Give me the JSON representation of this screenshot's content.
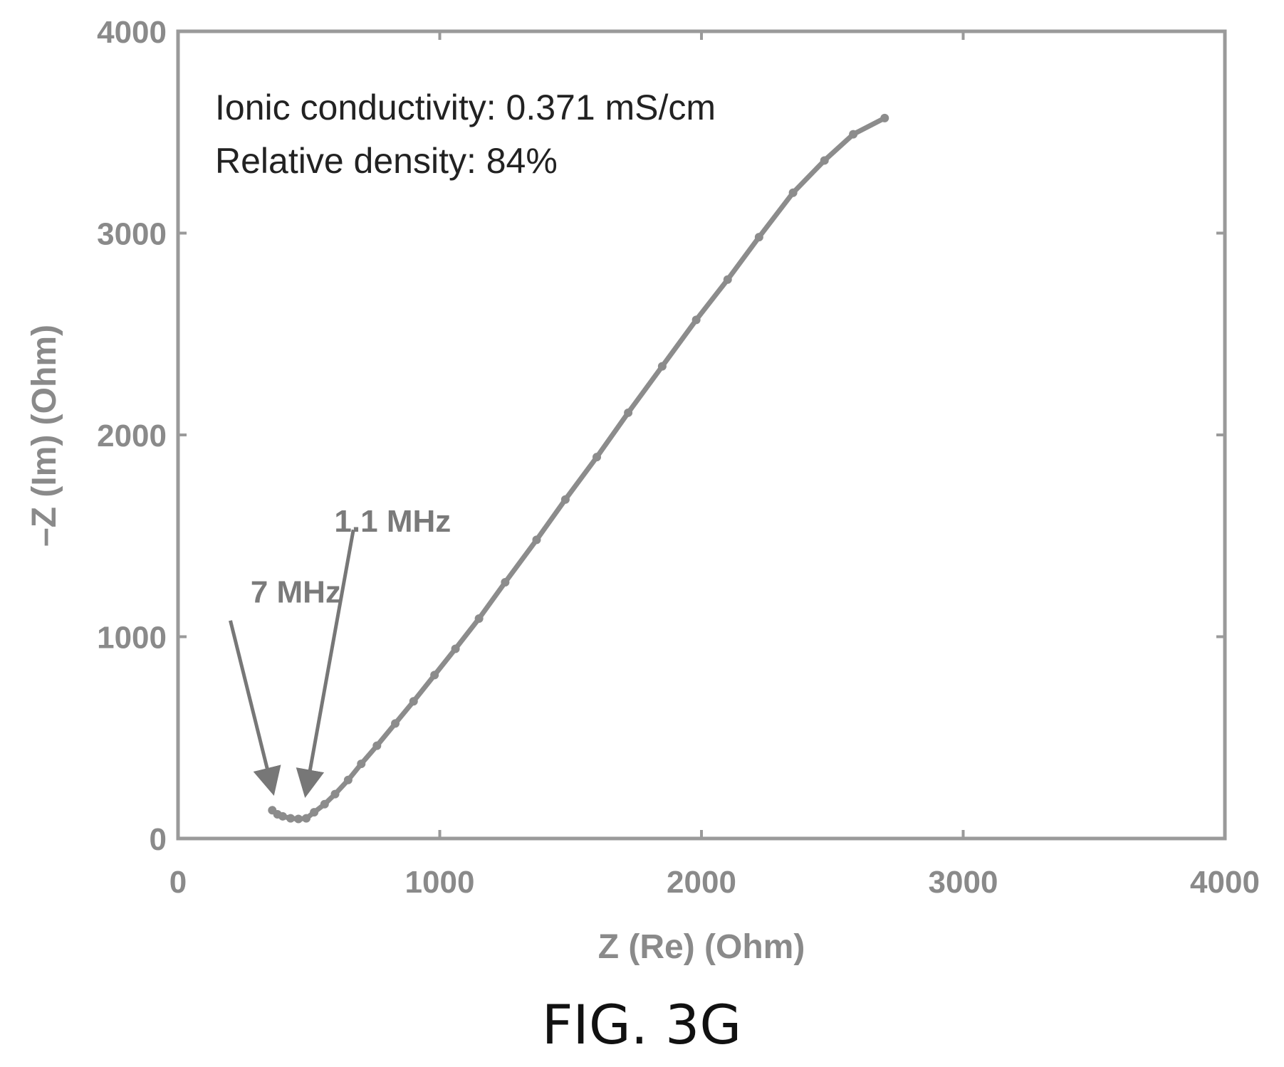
{
  "figure": {
    "caption": "FIG. 3G"
  },
  "chart_data": {
    "type": "line",
    "xlabel": "Z (Re) (Ohm)",
    "ylabel": "–Z (Im) (Ohm)",
    "xlim": [
      0,
      4000
    ],
    "ylim": [
      0,
      4000
    ],
    "xticks": [
      "0",
      "1000",
      "2000",
      "3000",
      "4000"
    ],
    "yticks": [
      "0",
      "1000",
      "2000",
      "3000",
      "4000"
    ],
    "annotations": {
      "conductivity": "Ionic conductivity: 0.371 mS/cm",
      "density": "Relative density: 84%"
    },
    "frequency_markers": [
      {
        "label": "7 MHz",
        "x": 360,
        "y": 140
      },
      {
        "label": "1.1 MHz",
        "x": 490,
        "y": 130
      }
    ],
    "series": [
      {
        "color": "#8c8c8c",
        "x": [
          360,
          380,
          400,
          430,
          460,
          490,
          520,
          560,
          600,
          650,
          700,
          760,
          830,
          900,
          980,
          1060,
          1150,
          1250,
          1370,
          1480,
          1600,
          1720,
          1850,
          1980,
          2100,
          2220,
          2350,
          2470,
          2580,
          2700
        ],
        "y": [
          140,
          120,
          110,
          100,
          97,
          100,
          130,
          170,
          220,
          290,
          370,
          460,
          570,
          680,
          810,
          940,
          1090,
          1270,
          1480,
          1680,
          1890,
          2110,
          2340,
          2570,
          2770,
          2980,
          3200,
          3360,
          3490,
          3570
        ]
      }
    ]
  }
}
